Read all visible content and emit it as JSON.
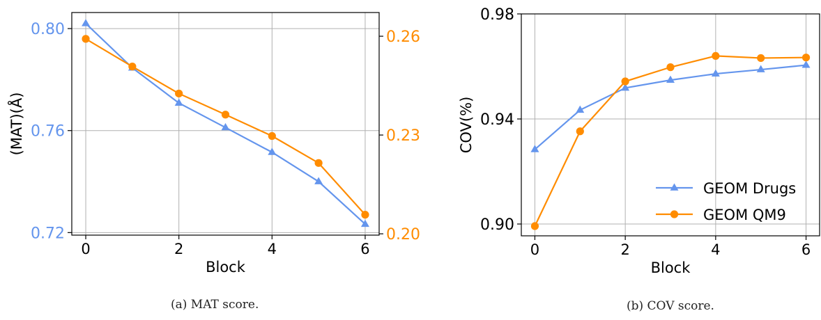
{
  "colors": {
    "drugs": "#6495ED",
    "qm9": "#FF8C00",
    "grid": "#b0b0b0"
  },
  "charts": [
    {
      "caption": "(a) MAT score.",
      "chart_data": {
        "type": "line",
        "x": [
          0,
          1,
          2,
          3,
          4,
          5,
          6
        ],
        "xlabel": "Block",
        "ylabel": "(MAT)(Å)",
        "xticks": [
          "0",
          "2",
          "4",
          "6"
        ],
        "xlim": [
          -0.3,
          6.3
        ],
        "grid": true,
        "legend": "none",
        "left_axis": {
          "ylim": [
            0.719,
            0.8063
          ],
          "ticks": [
            "0.72",
            "0.76",
            "0.80"
          ],
          "tick_values": [
            0.72,
            0.76,
            0.8
          ]
        },
        "right_axis": {
          "ylim": [
            0.1996,
            0.2672
          ],
          "ticks": [
            "0.20",
            "0.23",
            "0.26"
          ],
          "tick_values": [
            0.2,
            0.23,
            0.26
          ]
        },
        "series": [
          {
            "axis": "left",
            "color": "#6495ED",
            "marker": "triangle",
            "values": [
              0.802,
              0.7846,
              0.7708,
              0.7612,
              0.7515,
              0.74,
              0.7233
            ]
          },
          {
            "axis": "right",
            "color": "#FF8C00",
            "marker": "circle",
            "values": [
              0.2592,
              0.2508,
              0.2426,
              0.2362,
              0.2297,
              0.2215,
              0.2058
            ]
          }
        ]
      }
    },
    {
      "caption": "(b) COV score.",
      "chart_data": {
        "type": "line",
        "x": [
          0,
          1,
          2,
          3,
          4,
          5,
          6
        ],
        "xlabel": "Block",
        "ylabel": "COV(%)",
        "xticks": [
          "0",
          "2",
          "4",
          "6"
        ],
        "xlim": [
          -0.3,
          6.3
        ],
        "grid": true,
        "legend": "lower-right",
        "left_axis": {
          "ylim": [
            0.8955,
            0.98
          ],
          "ticks": [
            "0.90",
            "0.94",
            "0.98"
          ],
          "tick_values": [
            0.9,
            0.94,
            0.98
          ]
        },
        "series": [
          {
            "name": "GEOM Drugs",
            "axis": "left",
            "color": "#6495ED",
            "marker": "triangle",
            "values": [
              0.9284,
              0.9434,
              0.9518,
              0.9548,
              0.9572,
              0.9588,
              0.9605
            ]
          },
          {
            "name": "GEOM QM9",
            "axis": "left",
            "color": "#FF8C00",
            "marker": "circle",
            "values": [
              0.8992,
              0.9353,
              0.9543,
              0.9597,
              0.964,
              0.9632,
              0.9634
            ]
          }
        ]
      }
    }
  ]
}
